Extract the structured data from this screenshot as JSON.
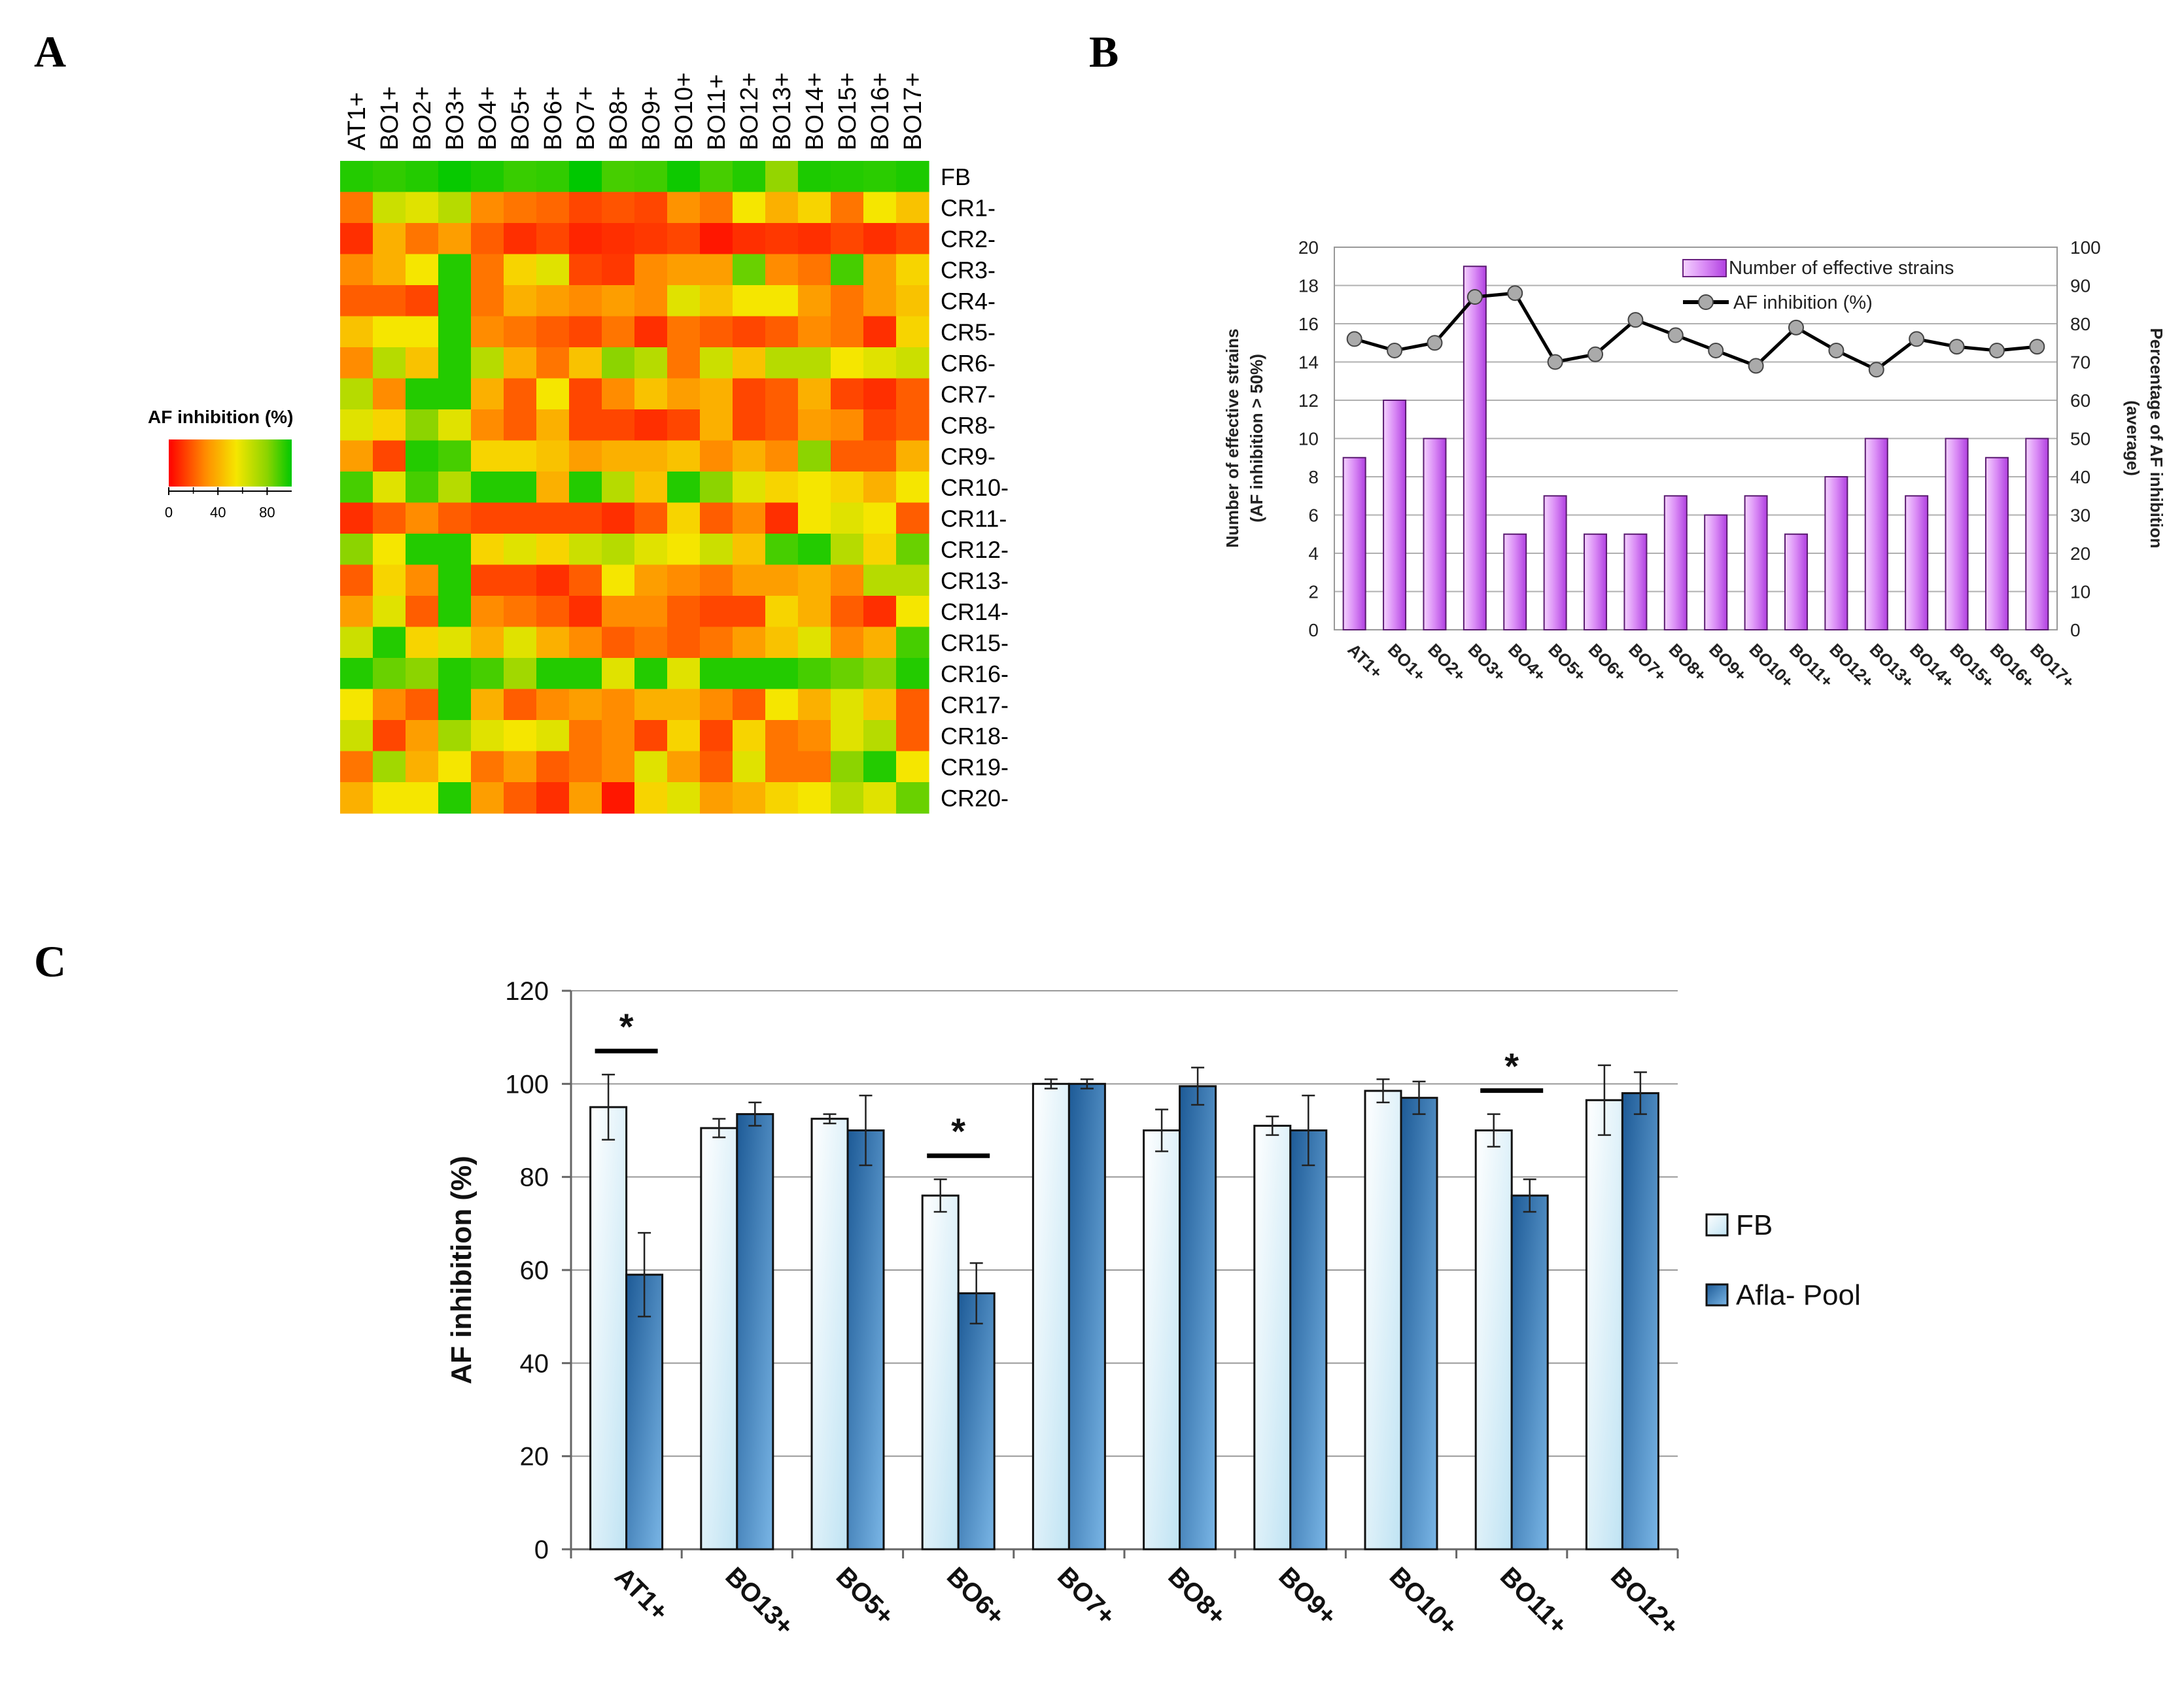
{
  "panels": {
    "a": "A",
    "b": "B",
    "c": "C"
  },
  "colors": {
    "green": "#00c800",
    "yellow": "#f5e600",
    "red": "#ff0000",
    "magenta": "#d060f0",
    "navy_bar": "#2f6fa8",
    "light_bar": "#dcf0f8"
  },
  "chart_data": [
    {
      "type": "heatmap",
      "panel": "A",
      "title": "AF inhibition (%)",
      "columns": [
        "AT1+",
        "BO1+",
        "BO2+",
        "BO3+",
        "BO4+",
        "BO5+",
        "BO6+",
        "BO7+",
        "BO8+",
        "BO9+",
        "BO10+",
        "BO11+",
        "BO12+",
        "BO13+",
        "BO14+",
        "BO15+",
        "BO16+",
        "BO17+"
      ],
      "rows": [
        "FB",
        "CR1-",
        "CR2-",
        "CR3-",
        "CR4-",
        "CR5-",
        "CR6-",
        "CR7-",
        "CR8-",
        "CR9-",
        "CR10-",
        "CR11-",
        "CR12-",
        "CR13-",
        "CR14-",
        "CR15-",
        "CR16-",
        "CR17-",
        "CR18-",
        "CR19-",
        "CR20-"
      ],
      "scale": {
        "min": 0,
        "max": 100,
        "ticks": [
          "0",
          "40",
          "80"
        ]
      },
      "values": [
        [
          95,
          93,
          95,
          99,
          96,
          92,
          93,
          100,
          90,
          91,
          98,
          90,
          95,
          78,
          96,
          95,
          94,
          96
        ],
        [
          25,
          65,
          60,
          70,
          30,
          25,
          22,
          15,
          18,
          15,
          32,
          25,
          55,
          40,
          50,
          25,
          55,
          45
        ],
        [
          10,
          40,
          25,
          35,
          20,
          10,
          15,
          8,
          10,
          12,
          15,
          5,
          10,
          12,
          10,
          15,
          10,
          15
        ],
        [
          30,
          40,
          55,
          95,
          25,
          50,
          60,
          15,
          12,
          30,
          35,
          35,
          85,
          30,
          25,
          90,
          35,
          50
        ],
        [
          20,
          20,
          15,
          95,
          25,
          40,
          35,
          30,
          35,
          30,
          60,
          45,
          55,
          55,
          35,
          25,
          35,
          45
        ],
        [
          45,
          55,
          55,
          95,
          30,
          25,
          20,
          15,
          25,
          10,
          25,
          20,
          15,
          20,
          30,
          25,
          10,
          50
        ],
        [
          30,
          70,
          45,
          95,
          70,
          40,
          25,
          45,
          80,
          70,
          25,
          65,
          45,
          70,
          70,
          55,
          60,
          65
        ],
        [
          70,
          30,
          95,
          95,
          40,
          20,
          55,
          15,
          30,
          45,
          35,
          40,
          15,
          20,
          40,
          15,
          10,
          20
        ],
        [
          60,
          50,
          80,
          60,
          30,
          20,
          40,
          15,
          15,
          10,
          15,
          40,
          15,
          20,
          35,
          30,
          15,
          20
        ],
        [
          35,
          15,
          95,
          90,
          50,
          50,
          45,
          35,
          40,
          40,
          45,
          30,
          40,
          30,
          80,
          20,
          20,
          40
        ],
        [
          90,
          60,
          90,
          70,
          95,
          95,
          40,
          95,
          70,
          45,
          95,
          80,
          60,
          50,
          55,
          50,
          40,
          55
        ],
        [
          10,
          20,
          30,
          20,
          15,
          15,
          15,
          15,
          10,
          20,
          50,
          20,
          30,
          10,
          55,
          60,
          55,
          20
        ],
        [
          80,
          55,
          95,
          95,
          50,
          60,
          50,
          65,
          70,
          60,
          55,
          65,
          45,
          90,
          95,
          70,
          50,
          85
        ],
        [
          20,
          50,
          30,
          95,
          15,
          15,
          10,
          20,
          55,
          35,
          30,
          25,
          35,
          35,
          40,
          30,
          70,
          70
        ],
        [
          35,
          60,
          20,
          95,
          30,
          25,
          20,
          10,
          30,
          30,
          20,
          15,
          15,
          50,
          40,
          20,
          10,
          55
        ],
        [
          65,
          95,
          50,
          60,
          40,
          60,
          40,
          30,
          20,
          25,
          20,
          25,
          35,
          45,
          60,
          30,
          40,
          90
        ],
        [
          95,
          85,
          80,
          95,
          90,
          75,
          95,
          95,
          60,
          95,
          60,
          95,
          95,
          95,
          90,
          85,
          80,
          95
        ],
        [
          55,
          30,
          20,
          95,
          40,
          20,
          30,
          35,
          30,
          40,
          40,
          30,
          20,
          55,
          40,
          60,
          45,
          20
        ],
        [
          65,
          15,
          35,
          75,
          60,
          55,
          60,
          25,
          30,
          15,
          50,
          15,
          50,
          25,
          30,
          60,
          70,
          20
        ],
        [
          25,
          75,
          40,
          55,
          25,
          35,
          20,
          25,
          30,
          60,
          35,
          20,
          60,
          25,
          25,
          80,
          95,
          55
        ],
        [
          40,
          55,
          55,
          95,
          35,
          20,
          10,
          35,
          5,
          50,
          60,
          35,
          40,
          50,
          55,
          70,
          60,
          85
        ]
      ]
    },
    {
      "type": "bar+line",
      "panel": "B",
      "categories": [
        "AT1+",
        "BO1+",
        "BO2+",
        "BO3+",
        "BO4+",
        "BO5+",
        "BO6+",
        "BO7+",
        "BO8+",
        "BO9+",
        "BO10+",
        "BO11+",
        "BO12+",
        "BO13+",
        "BO14+",
        "BO15+",
        "BO16+",
        "BO17+"
      ],
      "series": [
        {
          "name": "Number of effective strains",
          "type": "bar",
          "axis": "left",
          "values": [
            9,
            12,
            10,
            19,
            5,
            7,
            5,
            5,
            7,
            6,
            7,
            5,
            8,
            10,
            7,
            10,
            9,
            10
          ]
        },
        {
          "name": "AF inhibition (%)",
          "type": "line",
          "axis": "right",
          "values": [
            76,
            73,
            75,
            87,
            88,
            70,
            72,
            81,
            77,
            73,
            69,
            79,
            73,
            68,
            76,
            74,
            73,
            74
          ]
        }
      ],
      "ylabel_left": [
        "Number of effective strains",
        "(AF inhibition > 50%)"
      ],
      "ylabel_right": [
        "Percentage of AF inhibition",
        "(average)"
      ],
      "ylim_left": [
        0,
        20
      ],
      "ylim_right": [
        0,
        100
      ],
      "yticks_left": [
        "0",
        "2",
        "4",
        "6",
        "8",
        "10",
        "12",
        "14",
        "16",
        "18",
        "20"
      ],
      "yticks_right": [
        "0",
        "10",
        "20",
        "30",
        "40",
        "50",
        "60",
        "70",
        "80",
        "90",
        "100"
      ]
    },
    {
      "type": "bar",
      "panel": "C",
      "categories": [
        "AT1+",
        "BO13+",
        "BO5+",
        "BO6+",
        "BO7+",
        "BO8+",
        "BO9+",
        "BO10+",
        "BO11+",
        "BO12+"
      ],
      "series": [
        {
          "name": "FB",
          "values": [
            95,
            90.5,
            92.5,
            76,
            100,
            90,
            91,
            98.5,
            90,
            96.5
          ],
          "errors": [
            7,
            2,
            1,
            3.5,
            1,
            4.5,
            2,
            2.5,
            3.5,
            7.5
          ]
        },
        {
          "name": "Afla- Pool",
          "values": [
            59,
            93.5,
            90,
            55,
            100,
            99.5,
            90,
            97,
            76,
            98
          ],
          "errors": [
            9,
            2.5,
            7.5,
            6.5,
            1,
            4,
            7.5,
            3.5,
            3.5,
            4.5
          ]
        }
      ],
      "significance": [
        {
          "category": "AT1+",
          "label": "*"
        },
        {
          "category": "BO6+",
          "label": "*"
        },
        {
          "category": "BO11+",
          "label": "*"
        }
      ],
      "ylabel": "AF inhibition (%)",
      "ylim": [
        0,
        120
      ],
      "yticks": [
        "0",
        "20",
        "40",
        "60",
        "80",
        "100",
        "120"
      ],
      "grid": true,
      "legend": "right"
    }
  ]
}
